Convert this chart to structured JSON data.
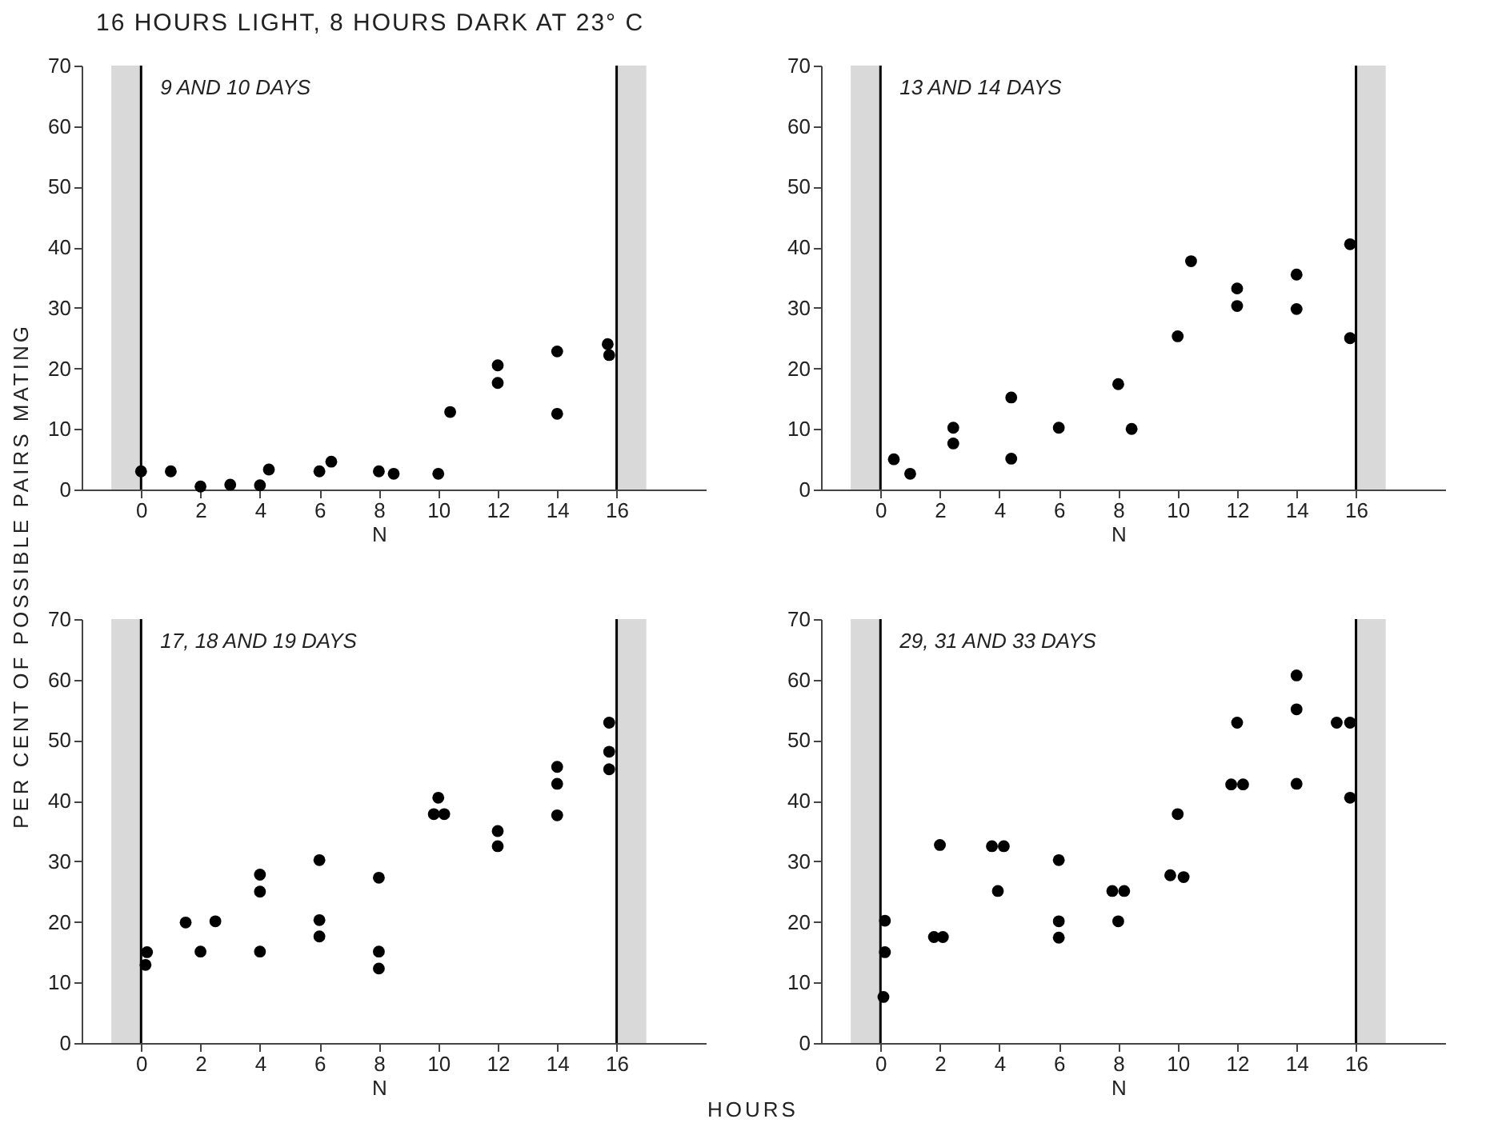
{
  "chart_data": [
    {
      "type": "scatter",
      "title": "16 HOURS LIGHT, 8 HOURS DARK AT 23° C",
      "xlabel": "N",
      "annotations": [
        "9 AND 10 DAYS"
      ],
      "marker": "circle",
      "grid": false,
      "xlim": [
        -2,
        19
      ],
      "ylim": [
        0,
        70
      ],
      "xticks": [
        0,
        2,
        4,
        6,
        8,
        10,
        12,
        14,
        16
      ],
      "yticks": [
        0,
        10,
        20,
        30,
        40,
        50,
        60,
        70
      ],
      "ref_lines": [
        {
          "axis": "x",
          "value": 0,
          "color": "#000000"
        },
        {
          "axis": "x",
          "value": 16,
          "color": "#000000"
        }
      ],
      "bands": [
        {
          "axis": "x",
          "from": -1,
          "to": 0,
          "color": "#d9d9d9"
        },
        {
          "axis": "x",
          "from": 16,
          "to": 17,
          "color": "#d9d9d9"
        }
      ],
      "series": [
        {
          "color": "#000000",
          "x": [
            0,
            1,
            2,
            3,
            4,
            4.3,
            6,
            6.4,
            8,
            8.5,
            10,
            10.4,
            12,
            12,
            14,
            14,
            15.7,
            15.75
          ],
          "values": [
            3,
            3,
            0.5,
            0.8,
            0.7,
            3.3,
            3,
            4.6,
            3,
            2.6,
            2.6,
            12.8,
            20.5,
            17.6,
            12.5,
            22.8,
            24,
            22.2
          ]
        }
      ]
    },
    {
      "type": "scatter",
      "xlabel": "N",
      "annotations": [
        "13 AND 14 DAYS"
      ],
      "marker": "circle",
      "grid": false,
      "xlim": [
        -2,
        19
      ],
      "ylim": [
        0,
        70
      ],
      "xticks": [
        0,
        2,
        4,
        6,
        8,
        10,
        12,
        14,
        16
      ],
      "yticks": [
        0,
        10,
        20,
        30,
        40,
        50,
        60,
        70
      ],
      "ref_lines": [
        {
          "axis": "x",
          "value": 0,
          "color": "#000000"
        },
        {
          "axis": "x",
          "value": 16,
          "color": "#000000"
        }
      ],
      "bands": [
        {
          "axis": "x",
          "from": -1,
          "to": 0,
          "color": "#d9d9d9"
        },
        {
          "axis": "x",
          "from": 16,
          "to": 17,
          "color": "#d9d9d9"
        }
      ],
      "series": [
        {
          "color": "#000000",
          "x": [
            0.45,
            1,
            2.45,
            2.45,
            4.4,
            4.4,
            6,
            8,
            8.45,
            10,
            10.45,
            12,
            12,
            14,
            14,
            15.8,
            15.8
          ],
          "values": [
            5,
            2.6,
            10.2,
            7.6,
            15.2,
            5.1,
            10.2,
            17.4,
            10,
            25.3,
            37.7,
            33.2,
            30.3,
            35.5,
            29.8,
            40.5,
            25
          ]
        }
      ]
    },
    {
      "type": "scatter",
      "xlabel": "N",
      "ylabel": "PER CENT OF POSSIBLE PAIRS MATING",
      "annotations": [
        "17, 18 AND 19 DAYS",
        "HOURS"
      ],
      "marker": "circle",
      "grid": false,
      "xlim": [
        -2,
        19
      ],
      "ylim": [
        0,
        70
      ],
      "xticks": [
        0,
        2,
        4,
        6,
        8,
        10,
        12,
        14,
        16
      ],
      "yticks": [
        0,
        10,
        20,
        30,
        40,
        50,
        60,
        70
      ],
      "ref_lines": [
        {
          "axis": "x",
          "value": 0,
          "color": "#000000"
        },
        {
          "axis": "x",
          "value": 16,
          "color": "#000000"
        }
      ],
      "bands": [
        {
          "axis": "x",
          "from": -1,
          "to": 0,
          "color": "#d9d9d9"
        },
        {
          "axis": "x",
          "from": 16,
          "to": 17,
          "color": "#d9d9d9"
        }
      ],
      "series": [
        {
          "color": "#000000",
          "x": [
            0.2,
            0.15,
            1.5,
            2,
            2.5,
            4,
            4,
            4,
            6,
            6,
            6,
            8,
            8,
            8,
            9.85,
            10.2,
            10,
            12,
            12,
            14,
            14,
            14,
            15.75,
            15.75,
            15.75
          ],
          "values": [
            15,
            12.9,
            19.9,
            15.1,
            20.1,
            27.8,
            25,
            15.1,
            30.2,
            20.3,
            17.6,
            27.3,
            15.1,
            12.3,
            37.8,
            37.8,
            40.5,
            35,
            32.5,
            45.6,
            42.8,
            37.6,
            52.9,
            48.1,
            45.2
          ]
        }
      ]
    },
    {
      "type": "scatter",
      "xlabel": "N",
      "annotations": [
        "29, 31 AND 33 DAYS"
      ],
      "marker": "circle",
      "grid": false,
      "xlim": [
        -2,
        19
      ],
      "ylim": [
        0,
        70
      ],
      "xticks": [
        0,
        2,
        4,
        6,
        8,
        10,
        12,
        14,
        16
      ],
      "yticks": [
        0,
        10,
        20,
        30,
        40,
        50,
        60,
        70
      ],
      "ref_lines": [
        {
          "axis": "x",
          "value": 0,
          "color": "#000000"
        },
        {
          "axis": "x",
          "value": 16,
          "color": "#000000"
        }
      ],
      "bands": [
        {
          "axis": "x",
          "from": -1,
          "to": 0,
          "color": "#d9d9d9"
        },
        {
          "axis": "x",
          "from": 16,
          "to": 17,
          "color": "#d9d9d9"
        }
      ],
      "series": [
        {
          "color": "#000000",
          "x": [
            0.15,
            0.15,
            0.1,
            1.8,
            2.1,
            2,
            3.75,
            4.15,
            3.95,
            6,
            6,
            6,
            7.8,
            8.2,
            8,
            9.75,
            10.2,
            10,
            11.8,
            12.2,
            12,
            14,
            14,
            14,
            15.35,
            15.8,
            15.8
          ],
          "values": [
            20.2,
            15,
            7.6,
            17.5,
            17.5,
            32.7,
            32.5,
            32.5,
            25.1,
            30.2,
            20.1,
            17.4,
            25.1,
            25.1,
            20.1,
            27.7,
            27.4,
            37.8,
            42.7,
            42.7,
            52.9,
            60.7,
            55.1,
            42.8,
            52.9,
            52.9,
            40.5
          ]
        }
      ]
    }
  ]
}
